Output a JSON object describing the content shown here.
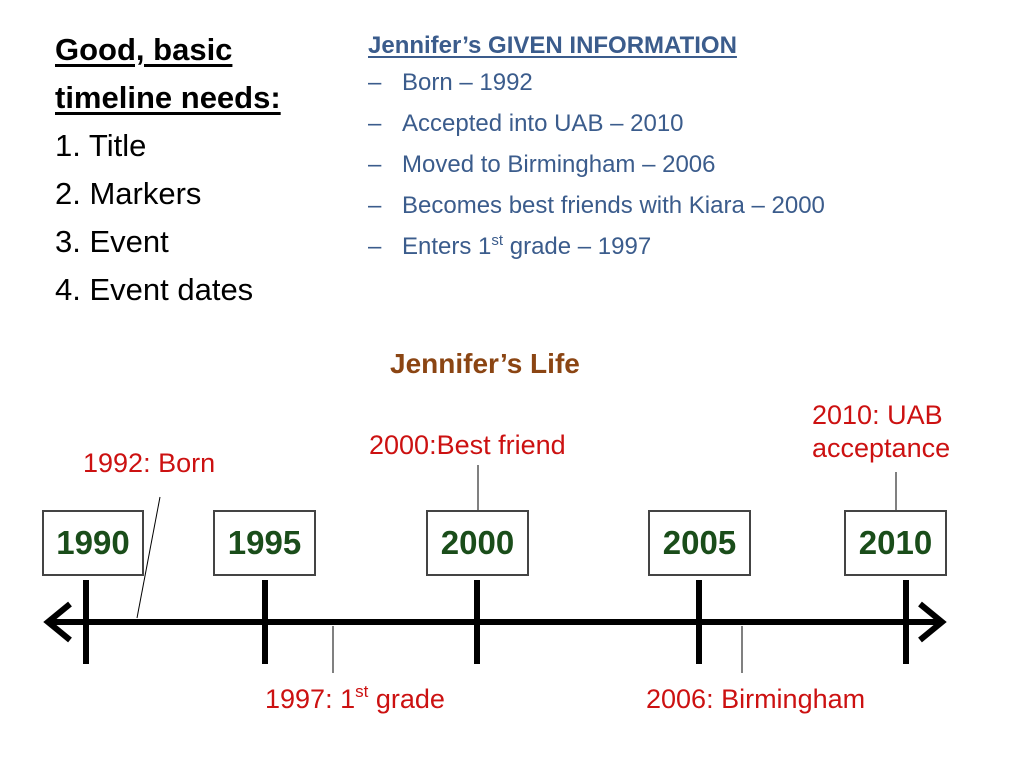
{
  "needs": {
    "heading_line1": "Good, basic",
    "heading_line2": "timeline needs:",
    "items": [
      "1. Title",
      "2. Markers",
      "3. Event",
      "4. Event dates"
    ]
  },
  "given": {
    "heading": "Jennifer’s GIVEN INFORMATION",
    "bullet": "–",
    "items": [
      "Born – 1992",
      "Accepted into UAB – 2010",
      "Moved to Birmingham – 2006",
      "Becomes best friends with Kiara – 2000",
      {
        "before": "Enters 1",
        "sup": "st",
        "after": " grade – 1997"
      }
    ]
  },
  "timeline": {
    "title": "Jennifer’s Life",
    "markers": [
      "1990",
      "1995",
      "2000",
      "2005",
      "2010"
    ],
    "events": {
      "born": "1992: Born",
      "best_friend": "2000:Best friend",
      "uab_line1": "2010: UAB",
      "uab_line2": "acceptance",
      "grade_before": "1997: 1",
      "grade_sup": "st",
      "grade_after": " grade",
      "birmingham": "2006: Birmingham"
    }
  },
  "colors": {
    "given_text": "#3b5c8c",
    "title": "#8b4513",
    "event_text": "#cc1111",
    "marker_text": "#1a4d1a",
    "axis": "#000000"
  }
}
